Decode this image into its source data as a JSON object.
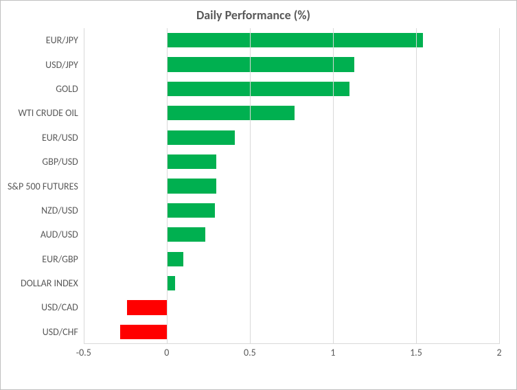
{
  "chart": {
    "type": "bar-horizontal",
    "title": "Daily Performance (%)",
    "title_fontsize": 18,
    "title_color": "#595959",
    "background_color": "#ffffff",
    "border_color": "#bfbfbf",
    "grid_color": "#d9d9d9",
    "label_color": "#595959",
    "label_fontsize": 14,
    "positive_color": "#00b050",
    "negative_color": "#ff0000",
    "xlim": [
      -0.5,
      2.0
    ],
    "xtick_step": 0.5,
    "xticks": [
      "-0.5",
      "0",
      "0.5",
      "1",
      "1.5",
      "2"
    ],
    "bar_height_ratio": 0.6,
    "categories": [
      "EUR/JPY",
      "USD/JPY",
      "GOLD",
      "WTI CRUDE OIL",
      "EUR/USD",
      "GBP/USD",
      "S&P 500 FUTURES",
      "NZD/USD",
      "AUD/USD",
      "EUR/GBP",
      "DOLLAR INDEX",
      "USD/CAD",
      "USD/CHF"
    ],
    "values": [
      1.54,
      1.13,
      1.1,
      0.77,
      0.41,
      0.3,
      0.3,
      0.29,
      0.23,
      0.1,
      0.05,
      -0.24,
      -0.28
    ]
  }
}
